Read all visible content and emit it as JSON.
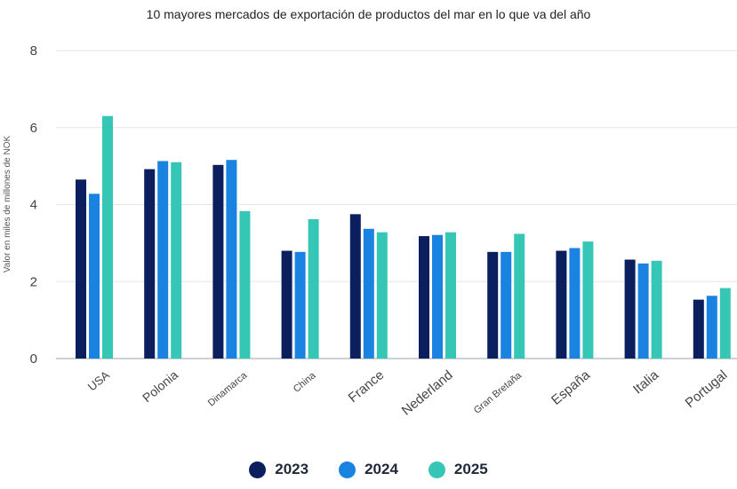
{
  "chart_data": {
    "type": "bar",
    "title": "10 mayores mercados de exportación de productos del mar en lo que va del año",
    "ylabel": "Valor en miles de millones de NOK",
    "xlabel": "",
    "ylim": [
      0,
      8
    ],
    "yticks": [
      0,
      2,
      4,
      6,
      8
    ],
    "grid": true,
    "legend_position": "bottom",
    "categories": [
      "USA",
      "Polonia",
      "Dinamarca",
      "China",
      "France",
      "Nederland",
      "Gran Bretaña",
      "España",
      "Italia",
      "Portugal"
    ],
    "series": [
      {
        "name": "2023",
        "color": "#0b1f5e",
        "values": [
          4.65,
          4.92,
          5.03,
          2.8,
          3.75,
          3.18,
          2.77,
          2.8,
          2.57,
          1.53
        ]
      },
      {
        "name": "2024",
        "color": "#1a82e0",
        "values": [
          4.28,
          5.13,
          5.16,
          2.77,
          3.37,
          3.21,
          2.77,
          2.87,
          2.47,
          1.63
        ]
      },
      {
        "name": "2025",
        "color": "#35c6b6",
        "values": [
          6.3,
          5.1,
          3.83,
          3.62,
          3.28,
          3.28,
          3.24,
          3.04,
          2.54,
          1.83
        ]
      }
    ]
  }
}
